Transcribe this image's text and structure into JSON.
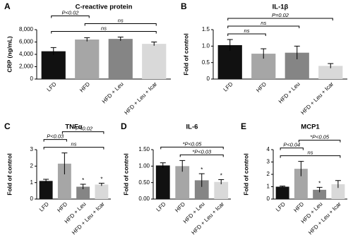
{
  "chart_data": [
    {
      "type": "bar",
      "panel": "A",
      "title": "C-reactive protein",
      "ylabel": "CRP (ng/mL)",
      "categories": [
        "LFD",
        "HFD",
        "HFD + Leu",
        "HFD + Leu + Icar"
      ],
      "values": [
        4500,
        6400,
        6500,
        5700
      ],
      "errors": [
        600,
        300,
        300,
        300
      ],
      "colors": [
        "#111111",
        "#a6a6a6",
        "#858585",
        "#d9d9d9"
      ],
      "marks": [
        null,
        null,
        null,
        null
      ],
      "ylim": [
        0,
        8000
      ],
      "yticks": [
        0,
        {
          "value": 2000,
          "label": "2,000"
        },
        {
          "value": 4000,
          "label": "4,000"
        },
        {
          "value": 6000,
          "label": "6,000"
        },
        {
          "value": 8000,
          "label": "8,000"
        }
      ],
      "brackets": [
        {
          "text": "ns",
          "from": 0,
          "to": 3
        },
        {
          "text": "ns",
          "from": 1,
          "to": 3
        },
        {
          "text": "P<0.02",
          "from": 0,
          "to": 1
        }
      ]
    },
    {
      "type": "bar",
      "panel": "B",
      "title": "IL-1β",
      "ylabel": "Fold of control",
      "categories": [
        "LFD",
        "HFD",
        "HFD + Leu",
        "HFD + Leu + Icar"
      ],
      "values": [
        1.03,
        0.77,
        0.8,
        0.4
      ],
      "errors": [
        0.17,
        0.15,
        0.2,
        0.07
      ],
      "colors": [
        "#111111",
        "#a6a6a6",
        "#858585",
        "#d9d9d9"
      ],
      "marks": [
        null,
        null,
        null,
        null
      ],
      "ylim": [
        0,
        1.5
      ],
      "yticks": [
        0,
        0.5,
        {
          "value": 1,
          "label": "1.0"
        },
        1.5
      ],
      "brackets": [
        {
          "text": "ns",
          "from": 0,
          "to": 1
        },
        {
          "text": "ns",
          "from": 0,
          "to": 2
        },
        {
          "text": "P=0.02",
          "from": 0,
          "to": 3
        }
      ]
    },
    {
      "type": "bar",
      "panel": "C",
      "title": "TNFα",
      "ylabel": "Fold of control",
      "categories": [
        "LFD",
        "HFD",
        "HFD + Leu",
        "HFD + Leu + Icar"
      ],
      "values": [
        1.1,
        2.15,
        0.75,
        0.88
      ],
      "errors": [
        0.1,
        0.65,
        0.15,
        0.08
      ],
      "colors": [
        "#111111",
        "#a6a6a6",
        "#858585",
        "#d9d9d9"
      ],
      "marks": [
        null,
        null,
        "*",
        "*"
      ],
      "ylim": [
        0,
        3
      ],
      "yticks": [
        0,
        1,
        2,
        3
      ],
      "brackets": [
        {
          "text": "ns",
          "from": 0,
          "to": 3
        },
        {
          "text": "P<0.03",
          "from": 0,
          "to": 1
        },
        {
          "text": "*P<0.02",
          "from": 1,
          "to": 3
        }
      ]
    },
    {
      "type": "bar",
      "panel": "D",
      "title": "IL-6",
      "ylabel": "Fold of control",
      "categories": [
        "LFD",
        "HFD",
        "HFD + Leu",
        "HFD + Leu + Icar"
      ],
      "values": [
        1.02,
        1.0,
        0.57,
        0.52
      ],
      "errors": [
        0.08,
        0.17,
        0.2,
        0.07
      ],
      "colors": [
        "#111111",
        "#a6a6a6",
        "#858585",
        "#d9d9d9"
      ],
      "marks": [
        null,
        null,
        "*",
        "*"
      ],
      "ylim": [
        0,
        1.5
      ],
      "yticks": [
        {
          "value": 0,
          "label": "0.00"
        },
        {
          "value": 0.5,
          "label": "0.50"
        },
        {
          "value": 1,
          "label": "1.00"
        },
        {
          "value": 1.5,
          "label": "1.50"
        }
      ],
      "brackets": [
        {
          "text": "*P<0.03",
          "from": 1,
          "to": 3
        },
        {
          "text": "*P<0.05",
          "from": 0,
          "to": 3
        }
      ]
    },
    {
      "type": "bar",
      "panel": "E",
      "title": "MCP1",
      "ylabel": "Fold of control",
      "categories": [
        "LFD",
        "HFD",
        "HFD + Leu",
        "HFD + Leu + Icar"
      ],
      "values": [
        1.0,
        2.45,
        0.75,
        1.2
      ],
      "errors": [
        0.05,
        0.6,
        0.2,
        0.3
      ],
      "colors": [
        "#111111",
        "#a6a6a6",
        "#858585",
        "#d9d9d9"
      ],
      "marks": [
        null,
        null,
        "*",
        null
      ],
      "ylim": [
        0,
        4
      ],
      "yticks": [
        0,
        1,
        2,
        3,
        4
      ],
      "brackets": [
        {
          "text": "ns",
          "from": 0,
          "to": 3
        },
        {
          "text": "P<0.04",
          "from": 0,
          "to": 1
        },
        {
          "text": "*P<0.05",
          "from": 1,
          "to": 3
        }
      ]
    }
  ]
}
